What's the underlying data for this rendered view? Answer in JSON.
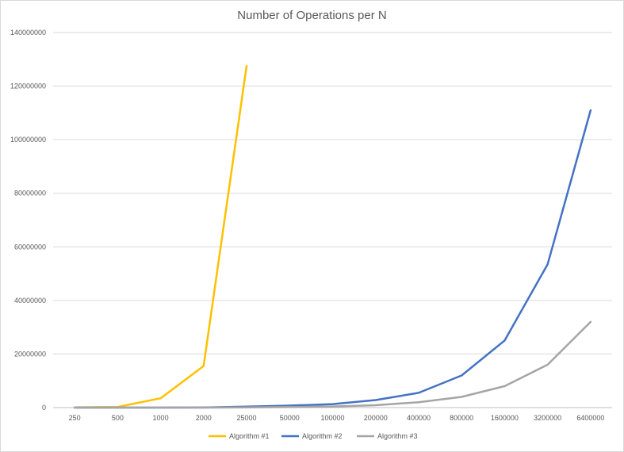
{
  "chart_data": {
    "type": "line",
    "title": "Number of Operations per N",
    "xlabel": "",
    "ylabel": "",
    "categories": [
      "250",
      "500",
      "1000",
      "2000",
      "25000",
      "50000",
      "100000",
      "200000",
      "400000",
      "800000",
      "1600000",
      "3200000",
      "6400000"
    ],
    "ylim": [
      0,
      140000000
    ],
    "yticks": [
      0,
      20000000,
      40000000,
      60000000,
      80000000,
      100000000,
      120000000,
      140000000
    ],
    "grid": true,
    "legend_position": "bottom",
    "series": [
      {
        "name": "Algorithm #1",
        "color": "#FFC000",
        "values": [
          62500,
          250000,
          3500000,
          15500000,
          127500000,
          null,
          null,
          null,
          null,
          null,
          null,
          null,
          null
        ]
      },
      {
        "name": "Algorithm #2",
        "color": "#4472C4",
        "values": [
          2000,
          4500,
          10000,
          22000,
          350000,
          750000,
          1300000,
          2800000,
          5500000,
          12000000,
          25000000,
          53500000,
          111000000
        ]
      },
      {
        "name": "Algorithm #3",
        "color": "#A5A5A5",
        "values": [
          1000,
          2000,
          4000,
          8000,
          100000,
          200000,
          400000,
          900000,
          2000000,
          4000000,
          8000000,
          16000000,
          32000000
        ]
      }
    ]
  }
}
